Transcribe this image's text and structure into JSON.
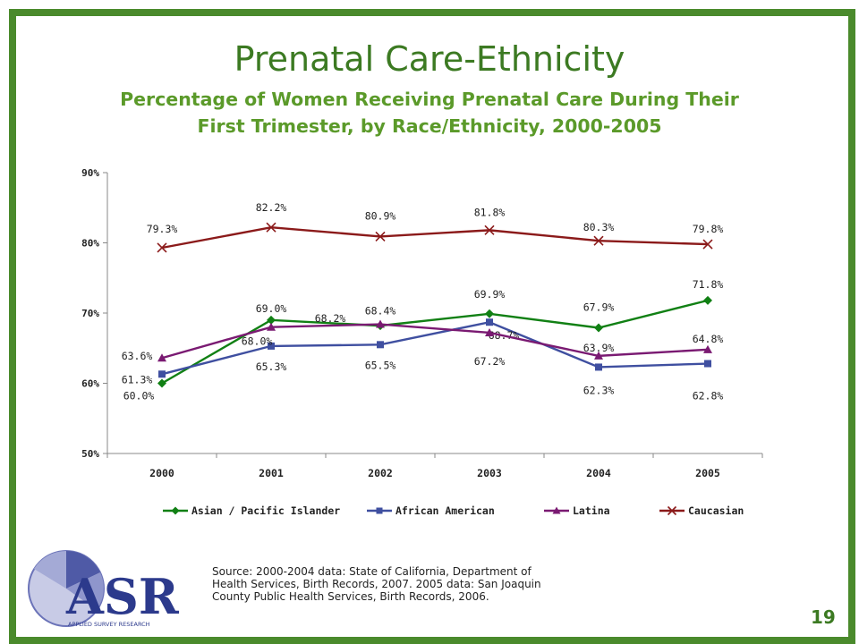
{
  "slide": {
    "title": "Prenatal Care-Ethnicity",
    "subtitle_line1": "Percentage of Women Receiving Prenatal Care During Their",
    "subtitle_line2": "First Trimester, by Race/Ethnicity, 2000-2005",
    "source_line1": "Source: 2000-2004 data: State of California, Department of",
    "source_line2": "Health Services, Birth Records, 2007. 2005 data: San Joaquin",
    "source_line3": "County Public Health Services, Birth Records, 2006.",
    "page_number": "19",
    "logo_text": "ASR",
    "logo_subtext": "APPLIED SURVEY RESEARCH",
    "frame_color": "#4a8a2c"
  },
  "chart_data": {
    "type": "line",
    "categories": [
      "2000",
      "2001",
      "2002",
      "2003",
      "2004",
      "2005"
    ],
    "ylim": [
      50,
      90
    ],
    "yticks": [
      "50%",
      "60%",
      "70%",
      "80%",
      "90%"
    ],
    "ytick_values": [
      50,
      60,
      70,
      80,
      90
    ],
    "legend_position": "bottom",
    "grid": false,
    "series": [
      {
        "name": "Asian / Pacific Islander",
        "color": "#118014",
        "marker": "diamond",
        "values": [
          60.0,
          69.0,
          68.2,
          69.9,
          67.9,
          71.8
        ],
        "labels": [
          "60.0%",
          "69.0%",
          "68.2%",
          "69.9%",
          "67.9%",
          "71.8%"
        ]
      },
      {
        "name": "African American",
        "color": "#3f4fa0",
        "marker": "square",
        "values": [
          61.3,
          65.3,
          65.5,
          68.7,
          62.3,
          62.8
        ],
        "labels": [
          "61.3%",
          "65.3%",
          "65.5%",
          "68.7%",
          "62.3%",
          "62.8%"
        ]
      },
      {
        "name": "Latina",
        "color": "#7a1a72",
        "marker": "triangle",
        "values": [
          63.6,
          68.0,
          68.4,
          67.2,
          63.9,
          64.8
        ],
        "labels": [
          "63.6%",
          "68.0%",
          "68.4%",
          "67.2%",
          "63.9%",
          "64.8%"
        ]
      },
      {
        "name": "Caucasian",
        "color": "#8b1a1a",
        "marker": "x",
        "values": [
          79.3,
          82.2,
          80.9,
          81.8,
          80.3,
          79.8
        ],
        "labels": [
          "79.3%",
          "82.2%",
          "80.9%",
          "81.8%",
          "80.3%",
          "79.8%"
        ]
      }
    ]
  }
}
